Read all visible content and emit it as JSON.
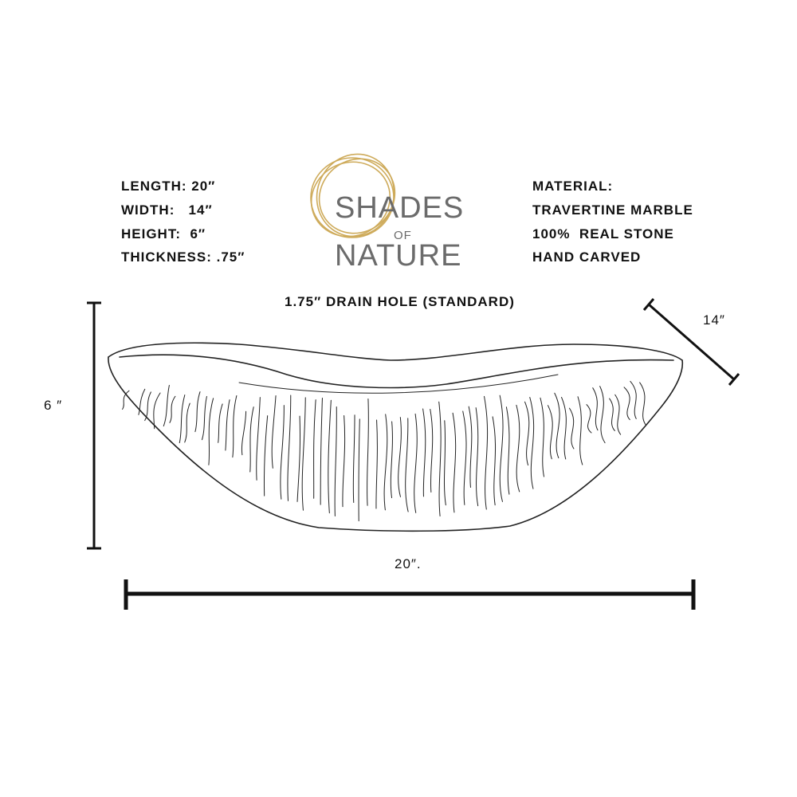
{
  "specs_left": [
    "LENGTH: 20″",
    "WIDTH:   14″",
    "HEIGHT:  6″",
    "THICKNESS: .75″"
  ],
  "specs_right": [
    "MATERIAL:",
    "TRAVERTINE MARBLE",
    "100%  REAL STONE",
    "HAND CARVED"
  ],
  "logo": {
    "line1": "SHADES",
    "line2": "OF",
    "line3": "NATURE",
    "ring_color": "#c9a24a",
    "text_color": "#6b6b6b"
  },
  "drain_label": "1.75″ DRAIN HOLE (STANDARD)",
  "dimensions": {
    "height": "6 ″",
    "width": "14″",
    "length": "20″."
  }
}
